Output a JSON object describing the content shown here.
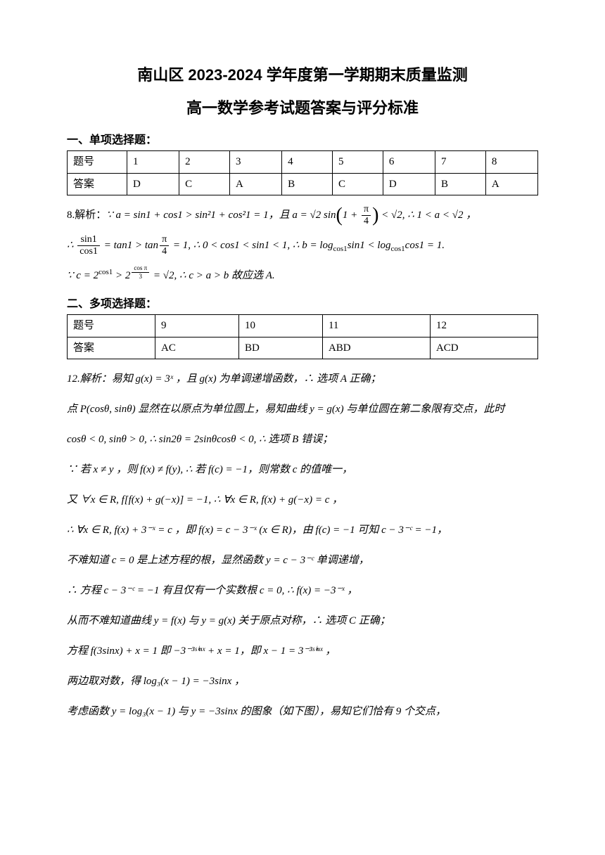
{
  "title": {
    "line1": "南山区 2023-2024 学年度第一学期期末质量监测",
    "line2": "高一数学参考试题答案与评分标准"
  },
  "section1": {
    "header": "一、单项选择题：",
    "row_label_q": "题号",
    "row_label_a": "答案",
    "questions": [
      "1",
      "2",
      "3",
      "4",
      "5",
      "6",
      "7",
      "8"
    ],
    "answers": [
      "D",
      "C",
      "A",
      "B",
      "C",
      "D",
      "B",
      "A"
    ]
  },
  "q8_analysis": {
    "prefix": "8.解析：",
    "line1_a": "∵ a = sin1 + cos1 > sin²1 + cos²1 = 1，且 a = √2 sin",
    "line1_b": " < √2, ∴ 1 < a < √2 ，",
    "line2_a": "∴ ",
    "line2_b": " = tan1 > tan",
    "line2_c": " = 1, ∴ 0 < cos1 < sin1 < 1, ∴ b = log",
    "line2_d": "sin1 < log",
    "line2_e": "cos1 = 1.",
    "line3": "∵ c = 2",
    "line3_b": " > 2",
    "line3_c": " = √2, ∴ c > a > b 故应选 A.",
    "sin1": "sin1",
    "cos1": "cos1",
    "pi4": "π",
    "four": "4",
    "sup_cos1": "cos1",
    "sup_cospi3": "cos(π/3)",
    "one_plus": "1 + "
  },
  "section2": {
    "header": "二、多项选择题：",
    "row_label_q": "题号",
    "row_label_a": "答案",
    "questions": [
      "9",
      "10",
      "11",
      "12"
    ],
    "answers": [
      "AC",
      "BD",
      "ABD",
      "ACD"
    ]
  },
  "q12": {
    "p1": "12.解析：易知 g(x) = 3ˣ ，且 g(x) 为单调递增函数，∴ 选项 A 正确；",
    "p2": "点 P(cosθ, sinθ) 显然在以原点为单位圆上，易知曲线 y = g(x) 与单位圆在第二象限有交点，此时",
    "p3": "cosθ < 0, sinθ > 0, ∴ sin2θ = 2sinθcosθ < 0, ∴ 选项 B 错误；",
    "p4": "∵ 若 x ≠ y ，则 f(x) ≠ f(y), ∴ 若 f(c) = −1，则常数 c 的值唯一，",
    "p5": "又 ∀x ∈ R, f[f(x) + g(−x)] = −1, ∴ ∀x ∈ R, f(x) + g(−x) = c ，",
    "p6": "∴ ∀x ∈ R, f(x) + 3⁻ˣ = c ，即 f(x) = c − 3⁻ˣ (x ∈ R)，由 f(c) = −1 可知 c − 3⁻ᶜ = −1，",
    "p7": "不难知道 c = 0 是上述方程的根，显然函数 y = c − 3⁻ᶜ 单调递增，",
    "p8": "∴ 方程 c − 3⁻ᶜ = −1 有且仅有一个实数根 c = 0, ∴ f(x) = −3⁻ˣ ，",
    "p9": "从而不难知道曲线 y = f(x) 与 y = g(x) 关于原点对称，∴ 选项 C 正确；",
    "p10": "方程 f(3sinx) + x = 1 即 −3⁻³ˢⁱⁿˣ + x = 1，即 x − 1 = 3⁻³ˢⁱⁿˣ ，",
    "p11": "两边取对数，得 log₃(x − 1) = −3sinx ，",
    "p12": "考虑函数 y = log₃(x − 1) 与 y = −3sinx 的图象（如下图），易知它们恰有 9 个交点，"
  }
}
